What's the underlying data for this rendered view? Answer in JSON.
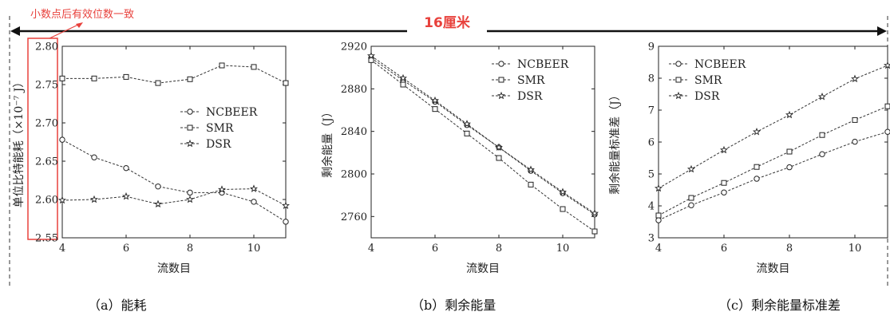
{
  "annotation": {
    "note": "小数点后有效位数一致",
    "width_label": "16厘米",
    "color": "#e8413c"
  },
  "chart_data": [
    {
      "type": "line",
      "caption": "（a）能耗",
      "xlabel": "流数目",
      "ylabel": "单位比特能耗（×10⁻⁷ J）",
      "xlim": [
        4,
        11
      ],
      "ylim": [
        2.55,
        2.8
      ],
      "xticks": [
        4,
        6,
        8,
        10
      ],
      "xtick_labels": [
        "4",
        "6",
        "8",
        "10"
      ],
      "yticks": [
        2.55,
        2.6,
        2.65,
        2.7,
        2.75,
        2.8
      ],
      "ytick_labels": [
        "2.55",
        "2.60",
        "2.65",
        "2.70",
        "2.75",
        "2.80"
      ],
      "legend_position": "middle-right",
      "x": [
        4,
        5,
        6,
        7,
        8,
        9,
        10,
        11
      ],
      "series": [
        {
          "name": "NCBEER",
          "marker": "circle",
          "values": [
            2.678,
            2.655,
            2.641,
            2.617,
            2.609,
            2.609,
            2.597,
            2.571
          ]
        },
        {
          "name": "SMR",
          "marker": "square",
          "values": [
            2.758,
            2.758,
            2.76,
            2.752,
            2.757,
            2.775,
            2.773,
            2.752
          ]
        },
        {
          "name": "DSR",
          "marker": "star",
          "values": [
            2.599,
            2.6,
            2.604,
            2.594,
            2.6,
            2.613,
            2.614,
            2.592
          ]
        }
      ]
    },
    {
      "type": "line",
      "caption": "（b）剩余能量",
      "xlabel": "流数目",
      "ylabel": "剩余能量（J）",
      "xlim": [
        4,
        11
      ],
      "ylim": [
        2740,
        2920
      ],
      "xticks": [
        4,
        6,
        8,
        10
      ],
      "xtick_labels": [
        "4",
        "6",
        "8",
        "10"
      ],
      "yticks": [
        2760,
        2800,
        2840,
        2880,
        2920
      ],
      "ytick_labels": [
        "2760",
        "2800",
        "2840",
        "2880",
        "2920"
      ],
      "legend_position": "top-right",
      "x": [
        4,
        5,
        6,
        7,
        8,
        9,
        10,
        11
      ],
      "series": [
        {
          "name": "NCBEER",
          "marker": "circle",
          "values": [
            2909,
            2888,
            2868,
            2846,
            2825,
            2803,
            2782,
            2762
          ]
        },
        {
          "name": "SMR",
          "marker": "square",
          "values": [
            2907,
            2884,
            2861,
            2838,
            2815,
            2790,
            2767,
            2746
          ]
        },
        {
          "name": "DSR",
          "marker": "star",
          "values": [
            2911,
            2890,
            2869,
            2847,
            2825,
            2804,
            2783,
            2763
          ]
        }
      ]
    },
    {
      "type": "line",
      "caption": "（c）剩余能量标准差",
      "xlabel": "流数目",
      "ylabel": "剩余能量标准差（J）",
      "xlim": [
        4,
        11
      ],
      "ylim": [
        3,
        9
      ],
      "xticks": [
        4,
        6,
        8,
        10
      ],
      "xtick_labels": [
        "4",
        "6",
        "8",
        "10"
      ],
      "yticks": [
        3,
        4,
        5,
        6,
        7,
        8,
        9
      ],
      "ytick_labels": [
        "3",
        "4",
        "5",
        "6",
        "7",
        "8",
        "9"
      ],
      "legend_position": "top-left",
      "x": [
        4,
        5,
        6,
        7,
        8,
        9,
        10,
        11
      ],
      "series": [
        {
          "name": "NCBEER",
          "marker": "circle",
          "values": [
            3.55,
            4.02,
            4.42,
            4.85,
            5.21,
            5.62,
            6.01,
            6.32
          ]
        },
        {
          "name": "SMR",
          "marker": "square",
          "values": [
            3.7,
            4.25,
            4.72,
            5.22,
            5.7,
            6.22,
            6.69,
            7.12
          ]
        },
        {
          "name": "DSR",
          "marker": "star",
          "values": [
            4.55,
            5.15,
            5.75,
            6.32,
            6.85,
            7.42,
            7.98,
            8.4
          ]
        }
      ]
    }
  ]
}
